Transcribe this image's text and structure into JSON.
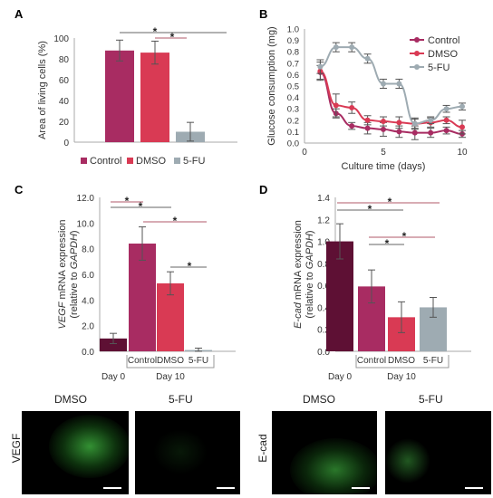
{
  "panels": {
    "A": {
      "letter": "A"
    },
    "B": {
      "letter": "B"
    },
    "C": {
      "letter": "C"
    },
    "D": {
      "letter": "D"
    }
  },
  "colors": {
    "day0": "#5e1034",
    "control": "#a82c62",
    "dmso": "#d93a54",
    "fu": "#9eabb2",
    "sig_red": "#b05a6a",
    "sig_gray": "#666666"
  },
  "chart_data": [
    {
      "panel": "A",
      "type": "bar",
      "ylabel": "Area of living cells (%)",
      "ylim": [
        0,
        100
      ],
      "yticks": [
        0,
        20,
        40,
        60,
        80,
        100
      ],
      "categories": [
        "Control",
        "DMSO",
        "5-FU"
      ],
      "values": [
        88,
        86,
        10
      ],
      "errors": [
        10,
        11,
        9
      ],
      "legend": [
        "Control",
        "DMSO",
        "5-FU"
      ],
      "significance": [
        "*",
        "*"
      ]
    },
    {
      "panel": "B",
      "type": "line",
      "xlabel": "Culture time (days)",
      "ylabel": "Glucose consumption (mg)",
      "xlim": [
        0,
        10
      ],
      "ylim": [
        0,
        1.0
      ],
      "xticks": [
        0,
        5,
        10
      ],
      "yticks": [
        0,
        0.1,
        0.2,
        0.3,
        0.4,
        0.5,
        0.6,
        0.7,
        0.8,
        0.9,
        1.0
      ],
      "x": [
        1,
        2,
        3,
        4,
        5,
        6,
        7,
        8,
        9,
        10
      ],
      "series": [
        {
          "name": "Control",
          "values": [
            0.62,
            0.26,
            0.15,
            0.13,
            0.12,
            0.1,
            0.09,
            0.09,
            0.11,
            0.08
          ],
          "errors": [
            0.06,
            0.04,
            0.03,
            0.05,
            0.06,
            0.05,
            0.06,
            0.04,
            0.03,
            0.03
          ]
        },
        {
          "name": "DMSO",
          "values": [
            0.63,
            0.33,
            0.31,
            0.2,
            0.19,
            0.18,
            0.17,
            0.18,
            0.2,
            0.14
          ],
          "errors": [
            0.08,
            0.1,
            0.05,
            0.04,
            0.04,
            0.05,
            0.05,
            0.04,
            0.03,
            0.06
          ]
        },
        {
          "name": "5-FU",
          "values": [
            0.67,
            0.84,
            0.84,
            0.74,
            0.52,
            0.52,
            0.17,
            0.2,
            0.3,
            0.32
          ],
          "errors": [
            0.06,
            0.04,
            0.04,
            0.04,
            0.04,
            0.04,
            0.04,
            0.03,
            0.03,
            0.03
          ]
        }
      ]
    },
    {
      "panel": "C",
      "type": "bar",
      "ylabel_gene": "VEGF",
      "ylabel_rest": " mRNA expression",
      "ylabel2_pre": "(relative to ",
      "ylabel2_gene": "GAPDH",
      "ylabel2_post": ")",
      "ylim": [
        0,
        12
      ],
      "yticks": [
        "0.0",
        "2.0",
        "4.0",
        "6.0",
        "8.0",
        "10.0",
        "12.0"
      ],
      "categories": [
        "Day 0",
        "Control",
        "DMSO",
        "5-FU"
      ],
      "values": [
        1.0,
        8.4,
        5.3,
        0.1
      ],
      "errors": [
        0.4,
        1.3,
        0.9,
        0.15
      ],
      "group_labels": {
        "day0": "Day 0",
        "day10": "Day 10"
      },
      "significance": [
        "*",
        "*",
        "*",
        "*"
      ]
    },
    {
      "panel": "D",
      "type": "bar",
      "ylabel_gene": "E-cad",
      "ylabel_rest": " mRNA expression",
      "ylabel2_pre": "(relative to ",
      "ylabel2_gene": "GAPDH",
      "ylabel2_post": ")",
      "ylim": [
        0,
        1.4
      ],
      "yticks": [
        "0.0",
        "0.2",
        "0.4",
        "0.6",
        "0.8",
        "1.0",
        "1.2",
        "1.4"
      ],
      "categories": [
        "Day 0",
        "Control",
        "DMSO",
        "5-FU"
      ],
      "values": [
        1.0,
        0.59,
        0.31,
        0.4
      ],
      "errors": [
        0.16,
        0.15,
        0.14,
        0.09
      ],
      "group_labels": {
        "day0": "Day 0",
        "day10": "Day 10"
      },
      "significance": [
        "*",
        "*",
        "*",
        "*"
      ]
    }
  ],
  "micrographs": {
    "left": {
      "row_label": "VEGF",
      "col1": "DMSO",
      "col2": "5-FU"
    },
    "right": {
      "row_label": "E-cad",
      "col1": "DMSO",
      "col2": "5-FU"
    }
  }
}
